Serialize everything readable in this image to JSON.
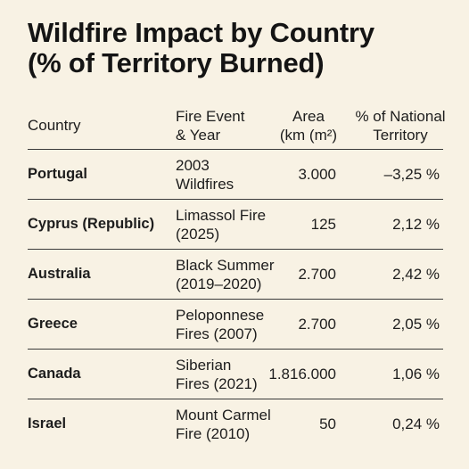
{
  "title": {
    "line1": "Wildfire Impact by Country",
    "line2": "(% of Territory Burned)"
  },
  "columns": {
    "country": "Country",
    "event_line1": "Fire Event",
    "event_line2": "& Year",
    "area_line1": "Area",
    "area_line2": "(km (m²)",
    "pct_line1": "% of National",
    "pct_line2": "Territory"
  },
  "rows": [
    {
      "country": "Portugal",
      "event_line1": "2003",
      "event_line2": "Wildfires",
      "area": "3.000",
      "pct": "–3,25 %"
    },
    {
      "country": "Cyprus (Republic)",
      "event_line1": "Limassol Fire",
      "event_line2": "(2025)",
      "area": "125",
      "pct": "2,12 %"
    },
    {
      "country": "Australia",
      "event_line1": "Black Summer",
      "event_line2": "(2019–2020)",
      "area": "2.700",
      "pct": "2,42 %"
    },
    {
      "country": "Greece",
      "event_line1": "Peloponnese",
      "event_line2": "Fires (2007)",
      "area": "2.700",
      "pct": "2,05 %"
    },
    {
      "country": "Canada",
      "event_line1": "Siberian",
      "event_line2": "Fires (2021)",
      "area": "1.816.000",
      "pct": "1,06 %"
    },
    {
      "country": "Israel",
      "event_line1": "Mount Carmel",
      "event_line2": "Fire (2010)",
      "area": "50",
      "pct": "0,24 %"
    }
  ]
}
